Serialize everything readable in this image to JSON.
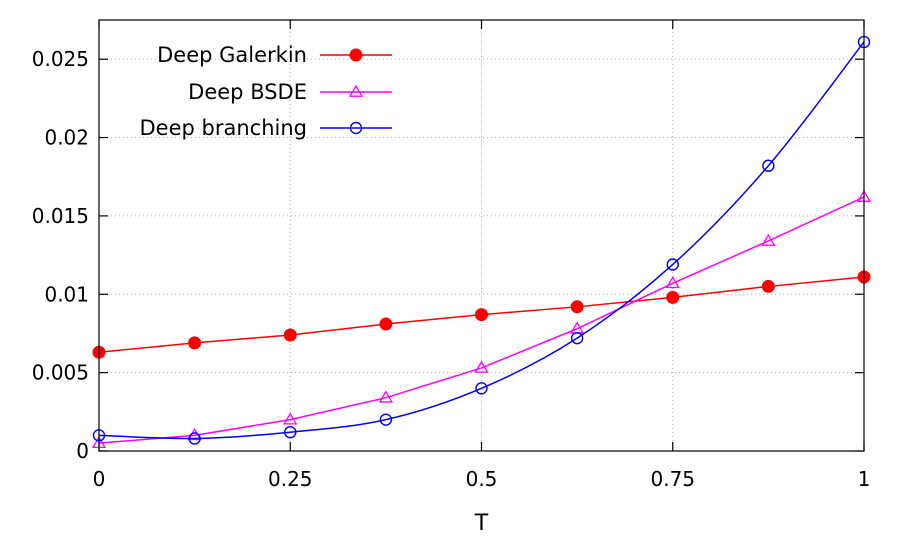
{
  "chart_data": {
    "type": "line",
    "title": "",
    "xlabel": "T",
    "ylabel": "",
    "xlim": [
      0,
      1
    ],
    "ylim": [
      0,
      0.0275
    ],
    "grid": true,
    "legend_position": "top-left",
    "x_ticks": [
      {
        "value": 0,
        "label": "0"
      },
      {
        "value": 0.25,
        "label": "0.25"
      },
      {
        "value": 0.5,
        "label": "0.5"
      },
      {
        "value": 0.75,
        "label": "0.75"
      },
      {
        "value": 1,
        "label": "1"
      }
    ],
    "y_ticks": [
      {
        "value": 0,
        "label": "0"
      },
      {
        "value": 0.005,
        "label": "0.005"
      },
      {
        "value": 0.01,
        "label": "0.01"
      },
      {
        "value": 0.015,
        "label": "0.015"
      },
      {
        "value": 0.02,
        "label": "0.02"
      },
      {
        "value": 0.025,
        "label": "0.025"
      }
    ],
    "x": [
      0,
      0.125,
      0.25,
      0.375,
      0.5,
      0.625,
      0.75,
      0.875,
      1
    ],
    "series": [
      {
        "name": "Deep Galerkin",
        "color": "#ff0000",
        "marker": "filled-circle",
        "values": [
          0.0063,
          0.0069,
          0.0074,
          0.0081,
          0.0087,
          0.0092,
          0.0098,
          0.0105,
          0.0111
        ]
      },
      {
        "name": "Deep BSDE",
        "color": "#ff00ff",
        "marker": "open-triangle",
        "values": [
          0.0005,
          0.001,
          0.002,
          0.0034,
          0.0053,
          0.0078,
          0.0107,
          0.0134,
          0.0162
        ]
      },
      {
        "name": "Deep branching",
        "color": "#0000ff",
        "marker": "open-circle",
        "values": [
          0.001,
          0.0008,
          0.0012,
          0.002,
          0.004,
          0.0072,
          0.0119,
          0.0182,
          0.0261
        ]
      }
    ]
  }
}
